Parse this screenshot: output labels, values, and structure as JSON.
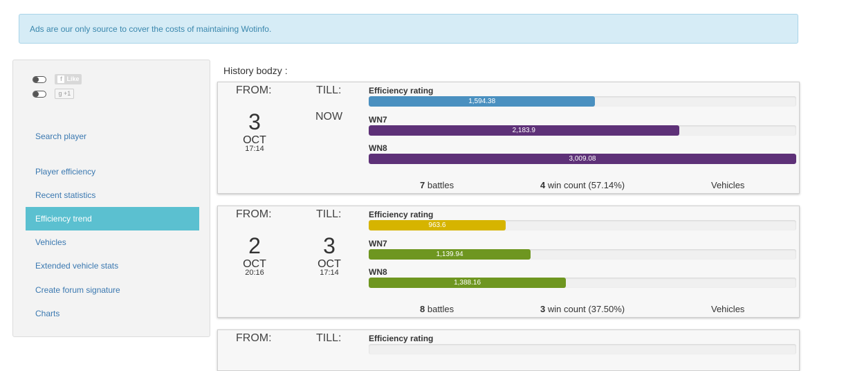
{
  "alert": {
    "text": "Ads are our only source to cover the costs of maintaining Wotinfo."
  },
  "social": {
    "like_label": "Like",
    "plusone_label": "+1"
  },
  "sidebar": {
    "items": [
      {
        "label": "Search player"
      },
      {
        "label": "Player efficiency"
      },
      {
        "label": "Recent statistics"
      },
      {
        "label": "Efficiency trend",
        "active": true
      },
      {
        "label": "Vehicles"
      },
      {
        "label": "Extended vehicle stats"
      },
      {
        "label": "Create forum signature"
      },
      {
        "label": "Charts"
      }
    ]
  },
  "history": {
    "title": "History bodzy :",
    "from_label": "FROM:",
    "till_label": "TILL:",
    "rating_labels": [
      "Efficiency rating",
      "WN7",
      "WN8"
    ],
    "battles_word": "battles",
    "vehicles_label": "Vehicles",
    "scale_max": 3009.08,
    "entries": [
      {
        "from": {
          "day": "3",
          "month": "OCT",
          "time": "17:14"
        },
        "till": {
          "now": "NOW"
        },
        "ratings": [
          {
            "name": "Efficiency rating",
            "value": 1594.38,
            "display": "1,594.38",
            "color": "#4a90c0"
          },
          {
            "name": "WN7",
            "value": 2183.9,
            "display": "2,183.9",
            "color": "#5e3178"
          },
          {
            "name": "WN8",
            "value": 3009.08,
            "display": "3,009.08",
            "color": "#5e3178"
          }
        ],
        "battles": "7",
        "win_count": "4",
        "win_text": "win count (57.14%)"
      },
      {
        "from": {
          "day": "2",
          "month": "OCT",
          "time": "20:16"
        },
        "till": {
          "day": "3",
          "month": "OCT",
          "time": "17:14"
        },
        "ratings": [
          {
            "name": "Efficiency rating",
            "value": 963.6,
            "display": "963.6",
            "color": "#d6b400"
          },
          {
            "name": "WN7",
            "value": 1139.94,
            "display": "1,139.94",
            "color": "#6e9620"
          },
          {
            "name": "WN8",
            "value": 1388.16,
            "display": "1,388.16",
            "color": "#6e9620"
          }
        ],
        "battles": "8",
        "win_count": "3",
        "win_text": "win count (37.50%)"
      },
      {
        "ratings": [
          {
            "name": "Efficiency rating",
            "value": 0,
            "display": "",
            "color": "#cccccc"
          }
        ]
      }
    ]
  }
}
